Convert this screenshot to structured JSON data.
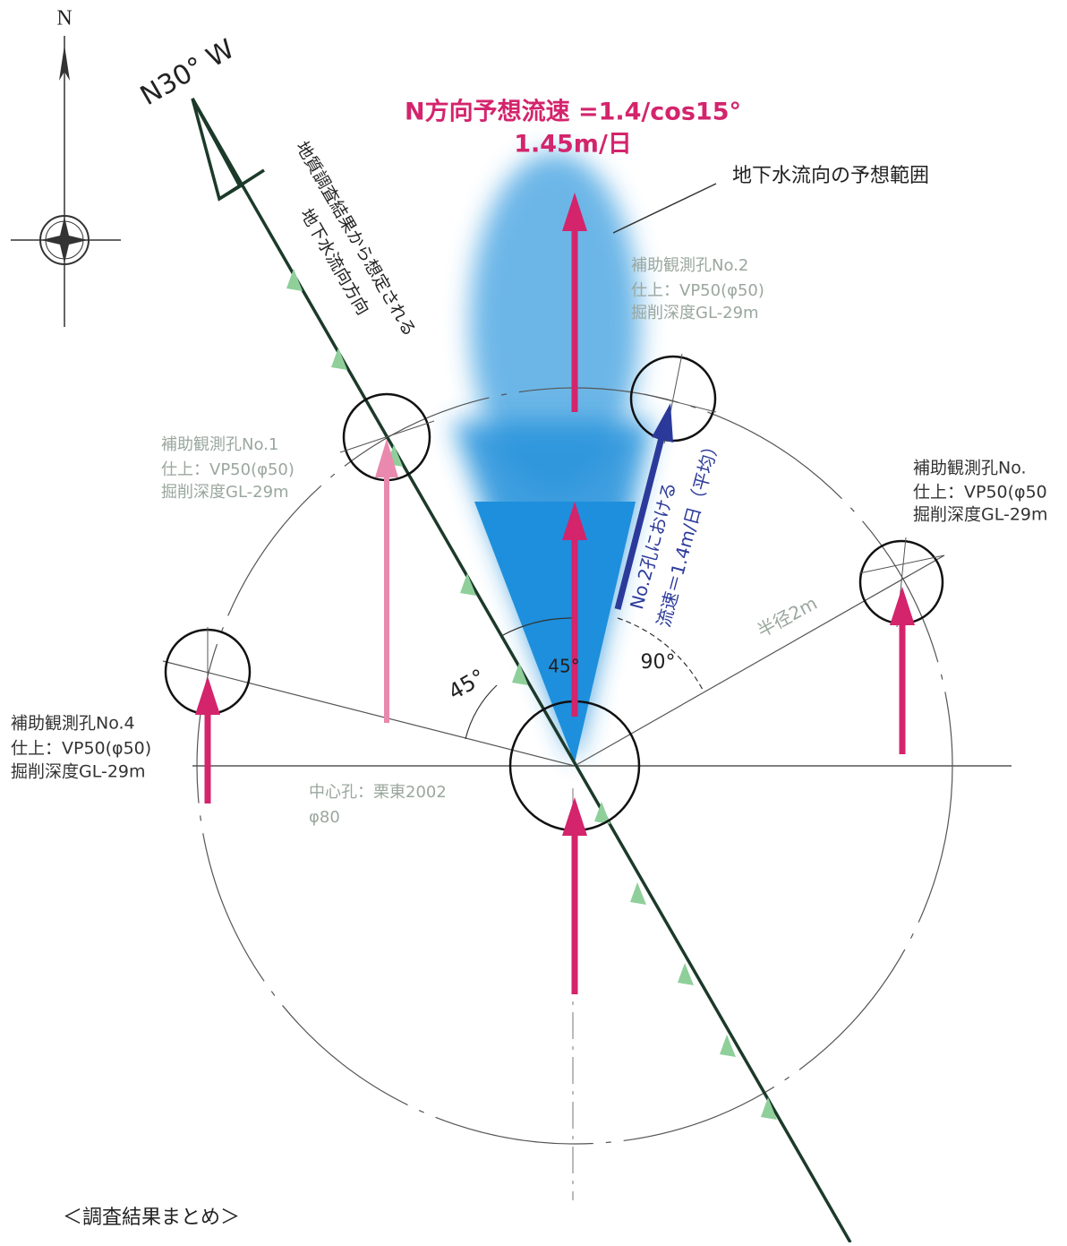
{
  "compass": {
    "north": "N"
  },
  "direction_line": {
    "label": "N30° W",
    "caption": [
      "地質調査結果から想定される",
      "地下水流向方向"
    ]
  },
  "title": {
    "line1": "N方向予想流速 =1.4/cos15°",
    "line2": "1.45m/日"
  },
  "range_label": "地下水流向の予想範囲",
  "holes": {
    "no2": [
      "補助観測孔No.2",
      "仕上：VP50(φ50)",
      "掘削深度GL-29m"
    ],
    "no1": [
      "補助観測孔No.1",
      "仕上：VP50(φ50)",
      "掘削深度GL-29m"
    ],
    "no3": [
      "補助観測孔No.",
      "仕上：VP50(φ50",
      "掘削深度GL-29m"
    ],
    "no4": [
      "補助観測孔No.4",
      "仕上：VP50(φ50)",
      "掘削深度GL-29m"
    ],
    "center": [
      "中心孔：栗東2002",
      "φ80"
    ]
  },
  "velocity_note": [
    "No.2孔における",
    "流速＝1.4m/日（平均）"
  ],
  "angles": [
    "45°",
    "45°",
    "90°"
  ],
  "radius_label": "半径2m",
  "caption": "＜調査結果まとめ＞"
}
